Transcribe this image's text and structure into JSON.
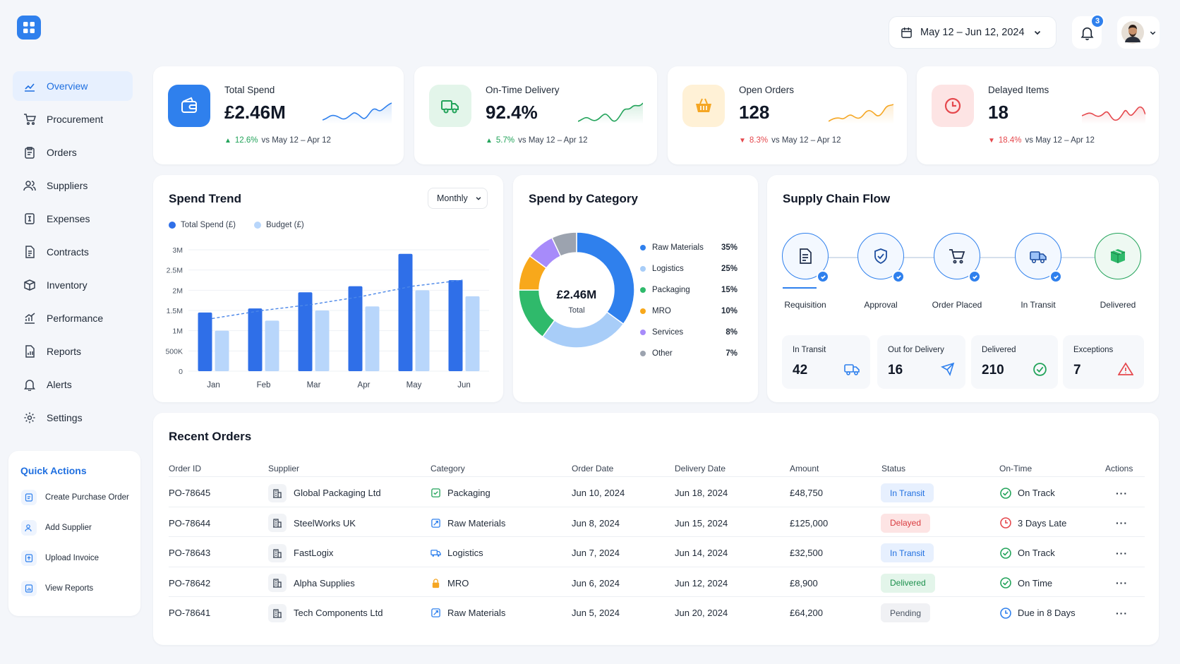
{
  "colors": {
    "primary": "#2f80ed",
    "success": "#22a35a",
    "warning": "#f5a623",
    "danger": "#e5484d"
  },
  "header": {
    "date_range": "May 12 – Jun 12, 2024",
    "notifications": "3"
  },
  "sidebar": {
    "items": [
      {
        "label": "Overview",
        "icon": "chart-line-icon",
        "active": true
      },
      {
        "label": "Procurement",
        "icon": "cart-icon"
      },
      {
        "label": "Orders",
        "icon": "clipboard-icon"
      },
      {
        "label": "Suppliers",
        "icon": "users-icon"
      },
      {
        "label": "Expenses",
        "icon": "expense-icon"
      },
      {
        "label": "Contracts",
        "icon": "document-icon"
      },
      {
        "label": "Inventory",
        "icon": "box-icon"
      },
      {
        "label": "Performance",
        "icon": "performance-icon"
      },
      {
        "label": "Reports",
        "icon": "report-icon"
      },
      {
        "label": "Alerts",
        "icon": "bell-icon"
      },
      {
        "label": "Settings",
        "icon": "gear-icon"
      }
    ]
  },
  "quick_actions": {
    "title": "Quick Actions",
    "items": [
      {
        "label": "Create Purchase Order",
        "icon": "purchase-order-icon"
      },
      {
        "label": "Add Supplier",
        "icon": "add-user-icon"
      },
      {
        "label": "Upload Invoice",
        "icon": "upload-icon"
      },
      {
        "label": "View Reports",
        "icon": "report-icon"
      }
    ]
  },
  "kpis": [
    {
      "label": "Total Spend",
      "value": "£2.46M",
      "delta": "12.6%",
      "dir": "up",
      "compare": "vs May 12 – Apr 12",
      "icon": "wallet-icon",
      "color": "#2f80ed"
    },
    {
      "label": "On-Time Delivery",
      "value": "92.4%",
      "delta": "5.7%",
      "dir": "up",
      "compare": "vs May 12 – Apr 12",
      "icon": "truck-icon",
      "color": "#22a35a"
    },
    {
      "label": "Open Orders",
      "value": "128",
      "delta": "8.3%",
      "dir": "down",
      "compare": "vs May 12 – Apr 12",
      "icon": "basket-icon",
      "color": "#f5a623"
    },
    {
      "label": "Delayed Items",
      "value": "18",
      "delta": "18.4%",
      "dir": "down",
      "compare": "vs May 12 – Apr 12",
      "icon": "clock-icon",
      "color": "#e5484d"
    }
  ],
  "spend_trend": {
    "title": "Spend Trend",
    "period": "Monthly",
    "legend": [
      "Total Spend (£)",
      "Budget (£)"
    ]
  },
  "chart_data": {
    "type": "bar",
    "categories": [
      "Jan",
      "Feb",
      "Mar",
      "Apr",
      "May",
      "Jun"
    ],
    "series": [
      {
        "name": "Total Spend (£)",
        "values": [
          1.45,
          1.55,
          1.95,
          2.1,
          2.9,
          2.25
        ],
        "color": "#2f6fe8"
      },
      {
        "name": "Budget (£)",
        "values": [
          1.0,
          1.25,
          1.5,
          1.6,
          2.0,
          1.85
        ],
        "color": "#b8d6fb"
      }
    ],
    "trend_line": [
      1.3,
      1.5,
      1.65,
      1.85,
      2.1,
      2.25
    ],
    "y_ticks": [
      "0",
      "500K",
      "1M",
      "1.5M",
      "2M",
      "2.5M",
      "3M"
    ],
    "ylim": [
      0,
      3
    ]
  },
  "category": {
    "title": "Spend by Category",
    "total": "£2.46M",
    "total_label": "Total",
    "items": [
      {
        "name": "Raw Materials",
        "pct": "35%",
        "value": 35,
        "color": "#2f80ed"
      },
      {
        "name": "Logistics",
        "pct": "25%",
        "value": 25,
        "color": "#a8cdf8"
      },
      {
        "name": "Packaging",
        "pct": "15%",
        "value": 15,
        "color": "#2fba6b"
      },
      {
        "name": "MRO",
        "pct": "10%",
        "value": 10,
        "color": "#f8a81b"
      },
      {
        "name": "Services",
        "pct": "8%",
        "value": 8,
        "color": "#a78bfa"
      },
      {
        "name": "Other",
        "pct": "7%",
        "value": 7,
        "color": "#9ca3af"
      }
    ]
  },
  "supply_chain": {
    "title": "Supply Chain Flow",
    "stages": [
      {
        "label": "Requisition",
        "icon": "document-icon",
        "done": true
      },
      {
        "label": "Approval",
        "icon": "shield-check-icon",
        "done": true
      },
      {
        "label": "Order Placed",
        "icon": "cart-icon",
        "done": true
      },
      {
        "label": "In Transit",
        "icon": "truck-icon",
        "done": true
      },
      {
        "label": "Delivered",
        "icon": "package-icon",
        "done": false
      }
    ],
    "stats": [
      {
        "label": "In Transit",
        "value": "42",
        "icon": "truck-icon"
      },
      {
        "label": "Out for Delivery",
        "value": "16",
        "icon": "plane-icon"
      },
      {
        "label": "Delivered",
        "value": "210",
        "icon": "check-circle-icon"
      },
      {
        "label": "Exceptions",
        "value": "7",
        "icon": "warning-icon"
      }
    ]
  },
  "orders": {
    "title": "Recent Orders",
    "headers": [
      "Order ID",
      "Supplier",
      "Category",
      "Order Date",
      "Delivery Date",
      "Amount",
      "Status",
      "On-Time",
      "Actions"
    ],
    "rows": [
      {
        "id": "PO-78645",
        "supplier": "Global Packaging Ltd",
        "category": "Packaging",
        "cat_icon": "packaging-icon",
        "order_date": "Jun 10, 2024",
        "delivery_date": "Jun 18, 2024",
        "amount": "£48,750",
        "status": "In Transit",
        "ontime": "On Track",
        "ontime_icon": "check-circle-icon"
      },
      {
        "id": "PO-78644",
        "supplier": "SteelWorks UK",
        "category": "Raw Materials",
        "cat_icon": "raw-materials-icon",
        "order_date": "Jun 8, 2024",
        "delivery_date": "Jun 15, 2024",
        "amount": "£125,000",
        "status": "Delayed",
        "ontime": "3 Days Late",
        "ontime_icon": "clock-icon"
      },
      {
        "id": "PO-78643",
        "supplier": "FastLogix",
        "category": "Logistics",
        "cat_icon": "truck-icon",
        "order_date": "Jun 7, 2024",
        "delivery_date": "Jun 14, 2024",
        "amount": "£32,500",
        "status": "In Transit",
        "ontime": "On Track",
        "ontime_icon": "check-circle-icon"
      },
      {
        "id": "PO-78642",
        "supplier": "Alpha Supplies",
        "category": "MRO",
        "cat_icon": "lock-icon",
        "order_date": "Jun 6, 2024",
        "delivery_date": "Jun 12, 2024",
        "amount": "£8,900",
        "status": "Delivered",
        "ontime": "On Time",
        "ontime_icon": "check-circle-icon"
      },
      {
        "id": "PO-78641",
        "supplier": "Tech Components Ltd",
        "category": "Raw Materials",
        "cat_icon": "raw-materials-icon",
        "order_date": "Jun 5, 2024",
        "delivery_date": "Jun 20, 2024",
        "amount": "£64,200",
        "status": "Pending",
        "ontime": "Due in 8 Days",
        "ontime_icon": "clock-icon"
      }
    ]
  }
}
